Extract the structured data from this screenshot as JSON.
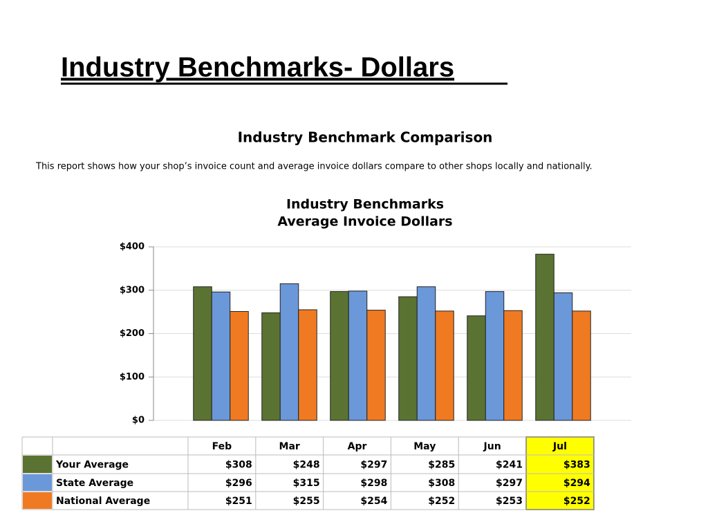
{
  "slide_title": "Industry Benchmarks- Dollars",
  "report_title": "Industry Benchmark Comparison",
  "report_description": "This report shows how your shop’s invoice count and average invoice dollars compare to other shops locally and nationally.",
  "chart_data": {
    "type": "bar",
    "title": "Industry Benchmarks",
    "subtitle": "Average Invoice Dollars",
    "categories": [
      "Feb",
      "Mar",
      "Apr",
      "May",
      "Jun",
      "Jul"
    ],
    "series": [
      {
        "name": "Your Average",
        "color": "#5b7332",
        "values": [
          308,
          248,
          297,
          285,
          241,
          383
        ],
        "value_labels": [
          "$308",
          "$248",
          "$297",
          "$285",
          "$241",
          "$383"
        ]
      },
      {
        "name": "State Average",
        "color": "#6b98d8",
        "values": [
          296,
          315,
          298,
          308,
          297,
          294
        ],
        "value_labels": [
          "$296",
          "$315",
          "$298",
          "$308",
          "$297",
          "$294"
        ]
      },
      {
        "name": "National Average",
        "color": "#f07a22",
        "values": [
          251,
          255,
          254,
          252,
          253,
          252
        ],
        "value_labels": [
          "$251",
          "$255",
          "$254",
          "$252",
          "$253",
          "$252"
        ]
      }
    ],
    "ylim": [
      0,
      400
    ],
    "yticks": [
      {
        "value": 0,
        "label": "$0"
      },
      {
        "value": 100,
        "label": "$100"
      },
      {
        "value": 200,
        "label": "$200"
      },
      {
        "value": 300,
        "label": "$300"
      },
      {
        "value": 400,
        "label": "$400"
      }
    ],
    "grid": true,
    "highlight_category": 5,
    "highlight_color": "#ffff00"
  }
}
